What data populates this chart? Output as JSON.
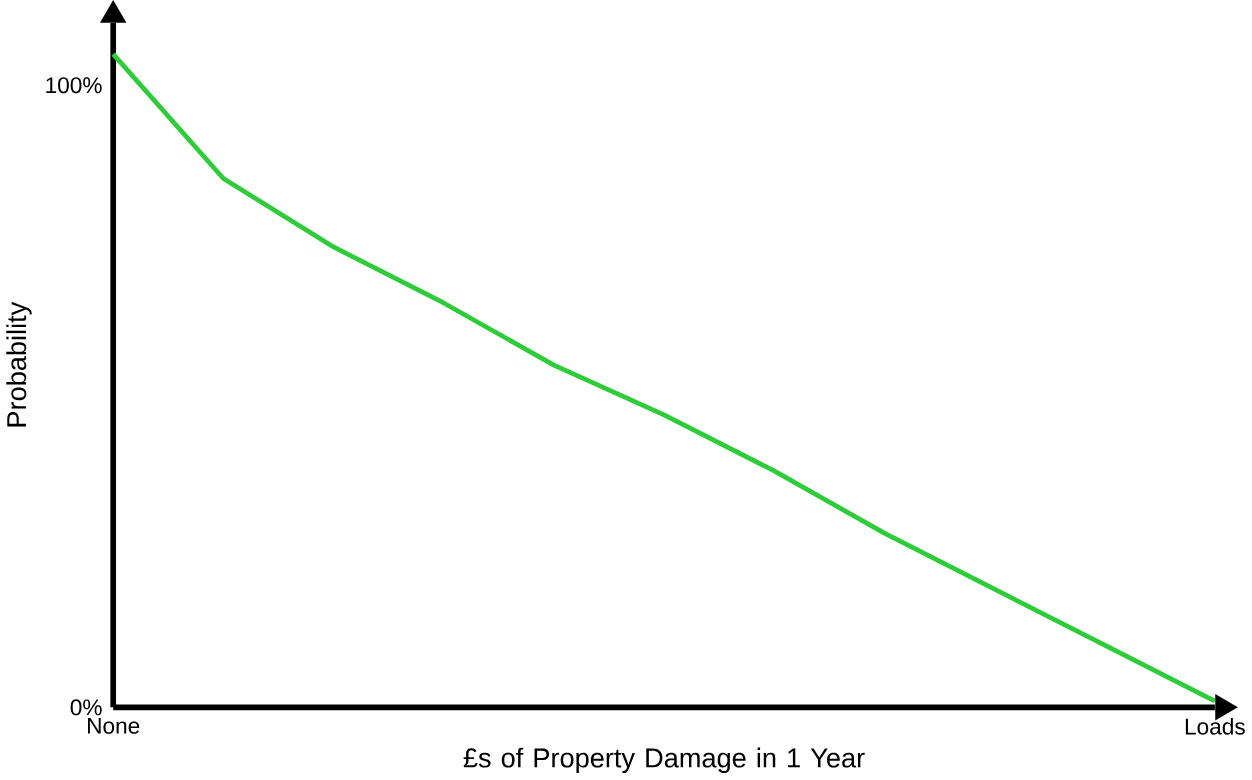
{
  "chart_data": {
    "type": "line",
    "xlabel": "£s of Property Damage in 1 Year",
    "ylabel": "Probability",
    "categories": [
      "None",
      null,
      null,
      null,
      null,
      null,
      null,
      null,
      null,
      null,
      "Loads"
    ],
    "series": [
      {
        "color": "#2fcc3a",
        "values": [
          105,
          85,
          74,
          65,
          55,
          47,
          38,
          28,
          19,
          10,
          1
        ]
      }
    ],
    "ylim": [
      0,
      110
    ],
    "yticks": [
      {
        "value": 0,
        "label": "0%"
      },
      {
        "value": 100,
        "label": "100%"
      }
    ],
    "grid": false,
    "marker": "none",
    "line_style": "solid"
  }
}
